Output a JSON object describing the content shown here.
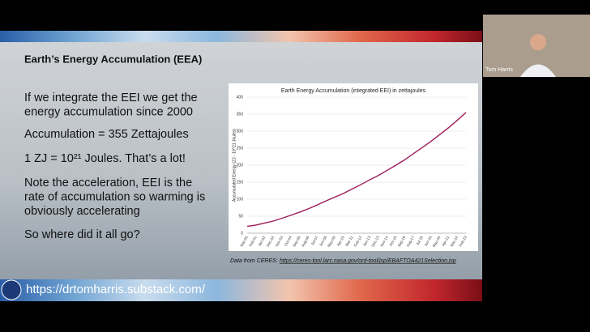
{
  "slide": {
    "title": "Earth’s Energy Accumulation (EEA)",
    "paragraphs": [
      [
        "If we integrate the EEI we get the",
        "energy accumulation since 2000"
      ],
      [
        "Accumulation = 355 Zettajoules"
      ],
      [
        "1 ZJ = 10²¹ Joules. That’s a lot!"
      ],
      [
        "Note the acceleration, EEI is the",
        "rate of accumulation so warming is",
        "obviously accelerating"
      ],
      [
        "So where did it all go?"
      ]
    ],
    "source_label": "Data from CERES:",
    "source_url": "https://ceres-tool.larc.nasa.gov/ord-tool/jsp/EBAFTOA421Selection.jsp",
    "footer_url": "https://drtomharris.substack.com/"
  },
  "video": {
    "name": "Tom Harris"
  },
  "chart_data": {
    "type": "line",
    "title": "Earth Energy Accumulation (integrated EEI) in zettajoules",
    "y_label": "Accumulated Energy (ZJ - 10^21 Joules)",
    "categories": [
      "Mar-00",
      "Feb-01",
      "Jan-02",
      "Dec-02",
      "Nov-03",
      "Oct-04",
      "Sep-05",
      "Aug-06",
      "Jul-07",
      "Jun-08",
      "May-09",
      "Apr-10",
      "Mar-11",
      "Feb-12",
      "Jan-13",
      "Dec-13",
      "Nov-14",
      "Oct-15",
      "Sep-16",
      "Aug-17",
      "Jul-18",
      "Jun-19",
      "May-20",
      "Apr-21",
      "Mar-22",
      "Feb-23"
    ],
    "values": [
      20,
      24,
      30,
      36,
      44,
      53,
      62,
      72,
      83,
      95,
      106,
      117,
      130,
      143,
      157,
      170,
      185,
      200,
      216,
      234,
      252,
      270,
      290,
      310,
      332,
      355
    ],
    "color": "#9b1b5a",
    "ylim": [
      0,
      400
    ],
    "yticks": [
      0,
      50,
      100,
      150,
      200,
      250,
      300,
      350,
      400
    ],
    "grid": true
  }
}
